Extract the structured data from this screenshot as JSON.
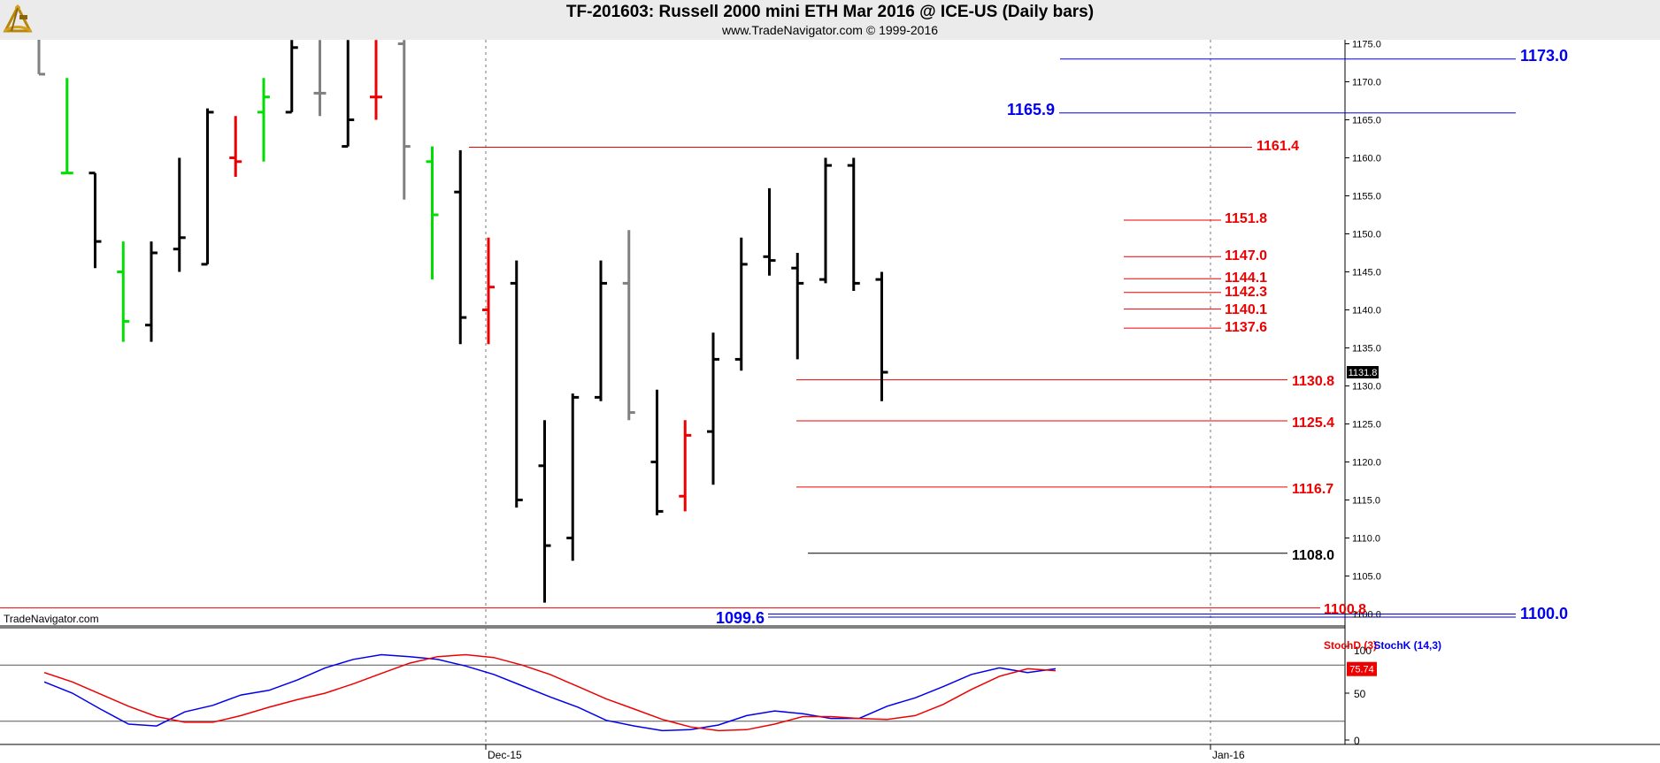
{
  "header": {
    "title": "TF-201603:  Russell 2000 mini ETH Mar 2016 @ ICE-US  (Daily bars)",
    "subtitle": "www.TradeNavigator.com © 1999-2016",
    "watermark": "TradeNavigator.com"
  },
  "colors": {
    "up": "#00dd00",
    "down": "#ee0000",
    "neutral": "#000000",
    "doji": "#808080",
    "level_red": "#ee0000",
    "level_blue": "#0000ee",
    "level_black": "#000000",
    "stochD": "#ee0000",
    "stochK": "#0000ee"
  },
  "chart_data": [
    {
      "type": "ohlc",
      "title": "TF-201603:  Russell 2000 mini ETH Mar 2016 @ ICE-US  (Daily bars)",
      "ylim": [
        1096,
        1176
      ],
      "y_ticks": [
        "1175.0",
        "1170.0",
        "1165.0",
        "1160.0",
        "1155.0",
        "1150.0",
        "1145.0",
        "1140.0",
        "1135.0",
        "1130.0",
        "1125.0",
        "1120.0",
        "1115.0",
        "1110.0",
        "1105.0",
        "1100.0"
      ],
      "x_labels": [
        "Dec-15",
        "Jan-16"
      ],
      "last_price_label": "1131.8",
      "bars": [
        {
          "o": 1178,
          "h": 1185,
          "l": 1171,
          "c": 1171,
          "color": "doji"
        },
        {
          "o": 1158,
          "h": 1170.5,
          "l": 1158,
          "c": 1158,
          "color": "up"
        },
        {
          "o": 1158,
          "h": 1158,
          "l": 1145.5,
          "c": 1149,
          "color": "neutral"
        },
        {
          "o": 1145,
          "h": 1149,
          "l": 1135.8,
          "c": 1138.5,
          "color": "up"
        },
        {
          "o": 1138,
          "h": 1149,
          "l": 1135.8,
          "c": 1147.5,
          "color": "neutral"
        },
        {
          "o": 1148,
          "h": 1160,
          "l": 1145,
          "c": 1149.5,
          "color": "neutral"
        },
        {
          "o": 1146,
          "h": 1166.5,
          "l": 1146,
          "c": 1166,
          "color": "neutral"
        },
        {
          "o": 1160,
          "h": 1165.5,
          "l": 1157.5,
          "c": 1159.5,
          "color": "down"
        },
        {
          "o": 1166,
          "h": 1170.5,
          "l": 1159.5,
          "c": 1168,
          "color": "up"
        },
        {
          "o": 1166,
          "h": 1175.5,
          "l": 1166,
          "c": 1174.5,
          "color": "neutral"
        },
        {
          "o": 1168.5,
          "h": 1175.5,
          "l": 1165.5,
          "c": 1168.5,
          "color": "doji"
        },
        {
          "o": 1161.5,
          "h": 1175.5,
          "l": 1161.5,
          "c": 1165,
          "color": "neutral"
        },
        {
          "o": 1168,
          "h": 1175.5,
          "l": 1165,
          "c": 1168,
          "color": "down"
        },
        {
          "o": 1175,
          "h": 1175.5,
          "l": 1154.5,
          "c": 1161.5,
          "color": "doji"
        },
        {
          "o": 1159.5,
          "h": 1161.5,
          "l": 1144,
          "c": 1152.5,
          "color": "up"
        },
        {
          "o": 1155.5,
          "h": 1161,
          "l": 1135.5,
          "c": 1139,
          "color": "neutral"
        },
        {
          "o": 1140,
          "h": 1149.5,
          "l": 1135.5,
          "c": 1143,
          "color": "down"
        },
        {
          "o": 1143.5,
          "h": 1146.5,
          "l": 1114,
          "c": 1115,
          "color": "neutral"
        },
        {
          "o": 1119.5,
          "h": 1125.5,
          "l": 1101.5,
          "c": 1109,
          "color": "neutral"
        },
        {
          "o": 1110,
          "h": 1129,
          "l": 1107,
          "c": 1128.5,
          "color": "neutral"
        },
        {
          "o": 1128.5,
          "h": 1146.5,
          "l": 1128,
          "c": 1143.5,
          "color": "neutral"
        },
        {
          "o": 1143.5,
          "h": 1150.5,
          "l": 1125.5,
          "c": 1126.5,
          "color": "doji"
        },
        {
          "o": 1120,
          "h": 1129.5,
          "l": 1113,
          "c": 1113.5,
          "color": "neutral"
        },
        {
          "o": 1115.5,
          "h": 1125.5,
          "l": 1113.5,
          "c": 1123.5,
          "color": "down"
        },
        {
          "o": 1124,
          "h": 1137,
          "l": 1117,
          "c": 1133.5,
          "color": "neutral"
        },
        {
          "o": 1133.5,
          "h": 1149.5,
          "l": 1132,
          "c": 1146,
          "color": "neutral"
        },
        {
          "o": 1147,
          "h": 1156,
          "l": 1144.5,
          "c": 1146.5,
          "color": "neutral"
        },
        {
          "o": 1145.5,
          "h": 1147.5,
          "l": 1133.5,
          "c": 1143.5,
          "color": "neutral"
        },
        {
          "o": 1144,
          "h": 1160,
          "l": 1143.5,
          "c": 1159,
          "color": "neutral"
        },
        {
          "o": 1159,
          "h": 1160,
          "l": 1142.5,
          "c": 1143.5,
          "color": "neutral"
        },
        {
          "o": 1144,
          "h": 1145,
          "l": 1128,
          "c": 1131.8,
          "color": "neutral"
        }
      ],
      "levels": [
        {
          "label": "1173.0",
          "value": 1173.0,
          "color": "level_blue"
        },
        {
          "label": "1165.9",
          "value": 1165.9,
          "color": "level_blue"
        },
        {
          "label": "1161.4",
          "value": 1161.4,
          "color": "level_red"
        },
        {
          "label": "1151.8",
          "value": 1151.8,
          "color": "level_red"
        },
        {
          "label": "1147.0",
          "value": 1147.0,
          "color": "level_red"
        },
        {
          "label": "1144.1",
          "value": 1144.1,
          "color": "level_red"
        },
        {
          "label": "1142.3",
          "value": 1142.3,
          "color": "level_red"
        },
        {
          "label": "1140.1",
          "value": 1140.1,
          "color": "level_red"
        },
        {
          "label": "1137.6",
          "value": 1137.6,
          "color": "level_red"
        },
        {
          "label": "1130.8",
          "value": 1130.8,
          "color": "level_red"
        },
        {
          "label": "1125.4",
          "value": 1125.4,
          "color": "level_red"
        },
        {
          "label": "1116.7",
          "value": 1116.7,
          "color": "level_red"
        },
        {
          "label": "1108.0",
          "value": 1108.0,
          "color": "level_black"
        },
        {
          "label": "1100.8",
          "value": 1100.8,
          "color": "level_red"
        },
        {
          "label": "1100.0",
          "value": 1100.0,
          "color": "level_blue"
        },
        {
          "label": "1099.6",
          "value": 1099.6,
          "color": "level_blue"
        }
      ]
    },
    {
      "type": "line",
      "ylim": [
        0,
        100
      ],
      "y_ticks": [
        "100",
        "50",
        "0"
      ],
      "last_value_label": "75.74",
      "series": [
        {
          "name": "StochD (3)",
          "color": "stochD",
          "values": [
            72,
            62,
            49,
            36,
            25,
            19,
            19,
            26,
            35,
            43,
            50,
            60,
            71,
            82,
            89,
            91,
            88,
            80,
            70,
            57,
            44,
            33,
            22,
            14,
            10,
            11,
            17,
            25,
            25,
            23,
            22,
            26,
            38,
            54,
            68,
            76,
            74
          ]
        },
        {
          "name": "StochK (14,3)",
          "color": "stochK",
          "values": [
            62,
            50,
            33,
            17,
            15,
            30,
            37,
            48,
            53,
            64,
            77,
            86,
            91,
            89,
            86,
            79,
            70,
            58,
            46,
            35,
            21,
            15,
            10,
            11,
            16,
            26,
            31,
            28,
            23,
            23,
            36,
            45,
            57,
            70,
            77,
            72,
            76
          ]
        }
      ]
    }
  ]
}
